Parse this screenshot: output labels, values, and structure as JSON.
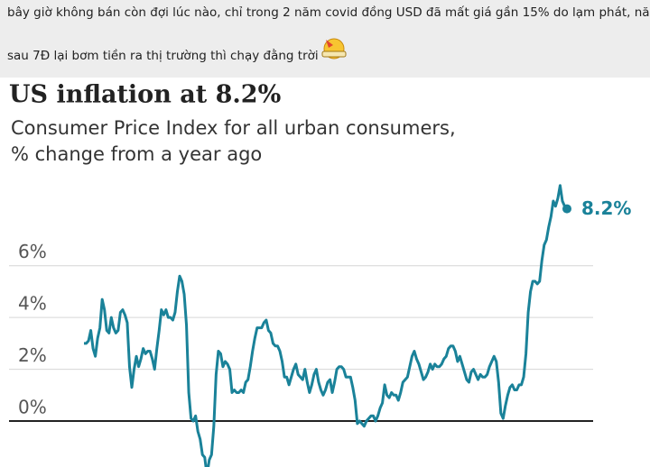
{
  "post": {
    "line1": "bây giờ không bán còn đợi lúc nào, chỉ trong 2 năm covid đồng USD đã mất giá gần 15% do lạm phát, năm",
    "line2": "sau 7Đ lại bơm tiền ra thị trường thì chạy đằng trời"
  },
  "chart_data": {
    "type": "line",
    "title": "US inflation at 8.2%",
    "subtitle": [
      "Consumer Price Index for all urban consumers,",
      "% change from a year ago"
    ],
    "color": "#1a8299",
    "grid": true,
    "ylim": [
      -1.8,
      9.3
    ],
    "yticks": [
      {
        "value": 0,
        "label": "0%"
      },
      {
        "value": 2,
        "label": "2%"
      },
      {
        "value": 4,
        "label": "4%"
      },
      {
        "value": 6,
        "label": "6%"
      }
    ],
    "values": [
      3.0,
      3.0,
      3.1,
      3.5,
      2.8,
      2.5,
      3.2,
      3.6,
      4.7,
      4.3,
      3.5,
      3.4,
      4.0,
      3.6,
      3.4,
      3.5,
      4.2,
      4.3,
      4.1,
      3.8,
      2.1,
      1.3,
      2.0,
      2.5,
      2.1,
      2.4,
      2.8,
      2.6,
      2.7,
      2.7,
      2.4,
      2.0,
      2.8,
      3.5,
      4.3,
      4.1,
      4.3,
      4.0,
      4.0,
      3.9,
      4.2,
      5.0,
      5.6,
      5.4,
      4.9,
      3.7,
      1.1,
      0.1,
      0.0,
      0.2,
      -0.4,
      -0.7,
      -1.3,
      -1.4,
      -2.1,
      -1.5,
      -1.3,
      -0.2,
      1.8,
      2.7,
      2.6,
      2.1,
      2.3,
      2.2,
      2.0,
      1.1,
      1.2,
      1.1,
      1.1,
      1.2,
      1.1,
      1.5,
      1.6,
      2.1,
      2.7,
      3.2,
      3.6,
      3.6,
      3.6,
      3.8,
      3.9,
      3.5,
      3.4,
      3.0,
      2.9,
      2.9,
      2.7,
      2.3,
      1.7,
      1.7,
      1.4,
      1.7,
      2.0,
      2.2,
      1.8,
      1.7,
      1.6,
      2.0,
      1.5,
      1.1,
      1.4,
      1.8,
      2.0,
      1.5,
      1.2,
      1.0,
      1.2,
      1.5,
      1.6,
      1.1,
      1.5,
      2.0,
      2.1,
      2.1,
      2.0,
      1.7,
      1.7,
      1.7,
      1.3,
      0.8,
      -0.1,
      0.0,
      -0.1,
      -0.2,
      0.0,
      0.1,
      0.2,
      0.2,
      0.0,
      0.2,
      0.5,
      0.7,
      1.4,
      1.0,
      0.9,
      1.1,
      1.0,
      1.0,
      0.8,
      1.1,
      1.5,
      1.6,
      1.7,
      2.1,
      2.5,
      2.7,
      2.4,
      2.2,
      1.9,
      1.6,
      1.7,
      1.9,
      2.2,
      2.0,
      2.2,
      2.1,
      2.1,
      2.2,
      2.4,
      2.5,
      2.8,
      2.9,
      2.9,
      2.7,
      2.3,
      2.5,
      2.2,
      1.9,
      1.6,
      1.5,
      1.9,
      2.0,
      1.8,
      1.6,
      1.8,
      1.7,
      1.7,
      1.8,
      2.1,
      2.3,
      2.5,
      2.3,
      1.5,
      0.3,
      0.1,
      0.6,
      1.0,
      1.3,
      1.4,
      1.2,
      1.2,
      1.4,
      1.4,
      1.7,
      2.6,
      4.2,
      5.0,
      5.4,
      5.4,
      5.3,
      5.4,
      6.2,
      6.8,
      7.0,
      7.5,
      7.9,
      8.5,
      8.3,
      8.6,
      9.1,
      8.5,
      8.3,
      8.2
    ],
    "value_labels": {
      "212": "8.2%"
    }
  }
}
